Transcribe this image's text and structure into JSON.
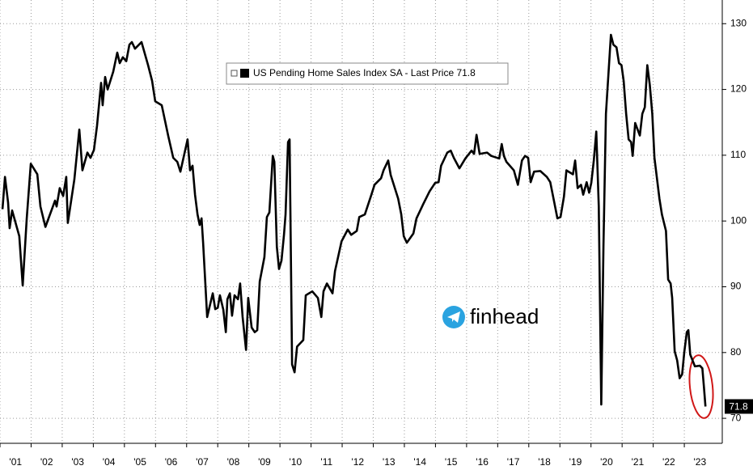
{
  "chart_data": {
    "type": "line",
    "x": [
      2001.08,
      2001.16,
      2001.26,
      2001.31,
      2001.39,
      2001.62,
      2001.73,
      2001.86,
      2001.99,
      2002.2,
      2002.3,
      2002.46,
      2002.77,
      2002.82,
      2002.92,
      2003.03,
      2003.13,
      2003.18,
      2003.39,
      2003.55,
      2003.65,
      2003.81,
      2003.91,
      2004.02,
      2004.12,
      2004.25,
      2004.3,
      2004.38,
      2004.46,
      2004.64,
      2004.77,
      2004.85,
      2004.95,
      2005.06,
      2005.16,
      2005.24,
      2005.34,
      2005.55,
      2005.76,
      2005.89,
      2005.99,
      2006.2,
      2006.41,
      2006.57,
      2006.7,
      2006.8,
      2007.03,
      2007.11,
      2007.19,
      2007.27,
      2007.35,
      2007.42,
      2007.48,
      2007.53,
      2007.66,
      2007.84,
      2007.92,
      2008.0,
      2008.07,
      2008.18,
      2008.26,
      2008.31,
      2008.39,
      2008.46,
      2008.54,
      2008.65,
      2008.72,
      2008.8,
      2008.91,
      2008.98,
      2009.09,
      2009.19,
      2009.27,
      2009.35,
      2009.5,
      2009.58,
      2009.66,
      2009.77,
      2009.82,
      2009.9,
      2009.97,
      2010.05,
      2010.13,
      2010.18,
      2010.26,
      2010.31,
      2010.39,
      2010.47,
      2010.55,
      2010.75,
      2010.83,
      2011.04,
      2011.22,
      2011.33,
      2011.4,
      2011.51,
      2011.69,
      2011.77,
      2011.98,
      2012.18,
      2012.29,
      2012.47,
      2012.55,
      2012.73,
      2012.94,
      2013.04,
      2013.25,
      2013.33,
      2013.48,
      2013.56,
      2013.8,
      2013.9,
      2013.98,
      2014.08,
      2014.29,
      2014.39,
      2014.6,
      2014.81,
      2014.99,
      2015.1,
      2015.18,
      2015.38,
      2015.49,
      2015.59,
      2015.77,
      2015.96,
      2016.16,
      2016.24,
      2016.32,
      2016.42,
      2016.66,
      2016.79,
      2017.05,
      2017.13,
      2017.2,
      2017.28,
      2017.52,
      2017.65,
      2017.78,
      2017.88,
      2017.98,
      2018.06,
      2018.17,
      2018.37,
      2018.58,
      2018.69,
      2018.82,
      2018.92,
      2019.02,
      2019.13,
      2019.21,
      2019.42,
      2019.49,
      2019.57,
      2019.68,
      2019.75,
      2019.86,
      2019.94,
      2020.01,
      2020.09,
      2020.17,
      2020.25,
      2020.33,
      2020.4,
      2020.48,
      2020.64,
      2020.72,
      2020.82,
      2020.9,
      2020.98,
      2021.05,
      2021.13,
      2021.21,
      2021.29,
      2021.34,
      2021.42,
      2021.57,
      2021.65,
      2021.73,
      2021.81,
      2021.89,
      2021.97,
      2022.04,
      2022.2,
      2022.28,
      2022.41,
      2022.48,
      2022.56,
      2022.61,
      2022.69,
      2022.77,
      2022.85,
      2022.93,
      2023.0,
      2023.08,
      2023.13,
      2023.19,
      2023.34,
      2023.5,
      2023.58,
      2023.63,
      2023.68
    ],
    "series": [
      {
        "name": "US Pending Home Sales Index SA - Last Price 71.8",
        "color": "#000000",
        "values": [
          101.8,
          106.7,
          102.8,
          98.9,
          101.6,
          97.7,
          90.2,
          100.4,
          108.7,
          107.1,
          102.2,
          99.1,
          103.1,
          102.2,
          105.0,
          103.8,
          106.7,
          99.7,
          106.3,
          113.9,
          107.7,
          110.4,
          109.6,
          110.8,
          114.5,
          121.0,
          117.6,
          121.9,
          120.0,
          122.7,
          125.6,
          124.0,
          124.9,
          124.3,
          126.8,
          127.2,
          126.2,
          127.2,
          123.7,
          121.3,
          118.2,
          117.6,
          112.9,
          109.6,
          109.0,
          107.5,
          112.4,
          107.7,
          108.4,
          104.0,
          101.0,
          99.4,
          100.4,
          96.7,
          85.4,
          89.0,
          86.6,
          86.8,
          88.7,
          86.5,
          83.1,
          88.1,
          89.0,
          85.6,
          88.7,
          88.1,
          90.5,
          85.4,
          80.4,
          88.3,
          83.8,
          83.1,
          83.4,
          90.8,
          94.5,
          100.6,
          101.3,
          109.9,
          109.0,
          96.1,
          92.7,
          94.0,
          97.9,
          101.0,
          112.0,
          112.4,
          78.2,
          77.0,
          80.9,
          81.9,
          88.7,
          89.3,
          88.3,
          85.4,
          89.3,
          90.5,
          89.0,
          92.4,
          96.9,
          98.7,
          97.9,
          98.5,
          100.6,
          101.0,
          104.0,
          105.5,
          106.5,
          107.7,
          109.2,
          107.0,
          103.4,
          101.0,
          97.7,
          96.7,
          98.1,
          100.4,
          102.5,
          104.5,
          105.8,
          105.9,
          108.4,
          110.4,
          110.7,
          109.6,
          108.0,
          109.5,
          110.7,
          110.2,
          113.1,
          110.2,
          110.4,
          109.9,
          109.5,
          111.7,
          109.9,
          109.0,
          107.7,
          105.5,
          109.2,
          109.9,
          109.6,
          105.9,
          107.5,
          107.6,
          106.7,
          105.9,
          102.8,
          100.4,
          100.6,
          103.7,
          107.7,
          107.1,
          109.2,
          105.0,
          105.5,
          104.0,
          105.9,
          104.3,
          105.8,
          109.2,
          113.6,
          102.2,
          72.1,
          96.1,
          116.3,
          128.3,
          126.8,
          126.4,
          124.0,
          123.7,
          121.3,
          116.3,
          112.4,
          112.0,
          109.9,
          114.9,
          113.0,
          116.3,
          117.3,
          123.7,
          120.7,
          116.3,
          109.6,
          103.4,
          101.0,
          98.5,
          91.1,
          90.5,
          88.3,
          80.2,
          78.8,
          76.1,
          76.7,
          80.1,
          83.1,
          83.4,
          79.7,
          77.9,
          78.0,
          77.6,
          74.8,
          71.8
        ]
      }
    ],
    "xlim": [
      2001,
      2024.22
    ],
    "xticks": [
      {
        "value": 2001,
        "label": "'01"
      },
      {
        "value": 2002,
        "label": "'02"
      },
      {
        "value": 2003,
        "label": "'03"
      },
      {
        "value": 2004,
        "label": "'04"
      },
      {
        "value": 2005,
        "label": "'05"
      },
      {
        "value": 2006,
        "label": "'06"
      },
      {
        "value": 2007,
        "label": "'07"
      },
      {
        "value": 2008,
        "label": "'08"
      },
      {
        "value": 2009,
        "label": "'09"
      },
      {
        "value": 2010,
        "label": "'10"
      },
      {
        "value": 2011,
        "label": "'11"
      },
      {
        "value": 2012,
        "label": "'12"
      },
      {
        "value": 2013,
        "label": "'13"
      },
      {
        "value": 2014,
        "label": "'14"
      },
      {
        "value": 2015,
        "label": "'15"
      },
      {
        "value": 2016,
        "label": "'16"
      },
      {
        "value": 2017,
        "label": "'17"
      },
      {
        "value": 2018,
        "label": "'18"
      },
      {
        "value": 2019,
        "label": "'19"
      },
      {
        "value": 2020,
        "label": "'20"
      },
      {
        "value": 2021,
        "label": "'21"
      },
      {
        "value": 2022,
        "label": "'22"
      },
      {
        "value": 2023,
        "label": "'23"
      }
    ],
    "ylim": [
      66.2,
      133.6
    ],
    "yticks": [
      70,
      80,
      90,
      100,
      110,
      120,
      130
    ],
    "grid": true,
    "watermark": "finhead"
  }
}
